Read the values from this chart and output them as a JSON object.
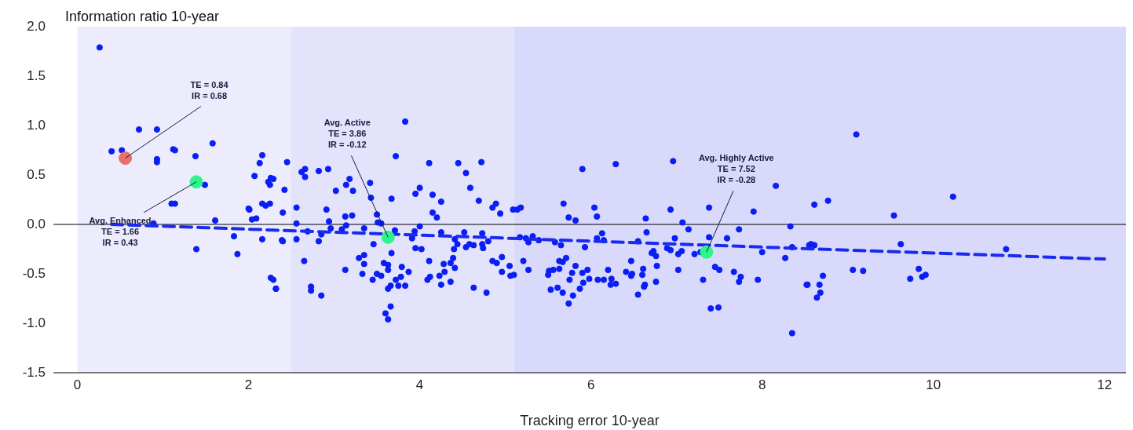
{
  "chart_data": {
    "type": "scatter",
    "xlabel": "Tracking error 10-year",
    "ylabel": "Information ratio 10-year",
    "xlim": [
      -0.28,
      12.25
    ],
    "xticks": [
      0,
      2,
      4,
      6,
      8,
      10,
      12
    ],
    "ylim": [
      -1.5,
      2.0
    ],
    "yticks": [
      {
        "value": -1.5,
        "label": "-1.5"
      },
      {
        "value": -1,
        "label": "-1.0"
      },
      {
        "value": -0.5,
        "label": "-0.5"
      },
      {
        "value": 0,
        "label": "0.0"
      },
      {
        "value": 0.5,
        "label": "0.5"
      },
      {
        "value": 1,
        "label": "1.0"
      },
      {
        "value": 1.5,
        "label": "1.5"
      },
      {
        "value": 2,
        "label": "2.0"
      }
    ],
    "grid": false,
    "legend": false,
    "bands": [
      {
        "axis": "x",
        "from": 0,
        "to": 2.5,
        "color": "#ececfc"
      },
      {
        "axis": "x",
        "from": 2.5,
        "to": 5.1,
        "color": "#e3e3fc"
      },
      {
        "axis": "x",
        "from": 5.1,
        "to": 12.25,
        "color": "#d9d9fb"
      }
    ],
    "ref_lines": [
      {
        "axis": "y",
        "value": 0,
        "color": "#000000"
      }
    ],
    "series": [
      {
        "type": "scatter",
        "color": "#0a1ef5",
        "x": [
          0.26,
          0.4,
          0.52,
          0.72,
          0.93,
          0.93,
          0.93,
          1.12,
          1.1,
          1.14,
          1.58,
          1.14,
          1.38,
          1.49,
          1.61,
          0.89,
          1.39,
          1.83,
          1.87,
          2.07,
          2.01,
          2.04,
          2.0,
          2.13,
          2.16,
          2.23,
          2.26,
          2.2,
          2.26,
          2.32,
          2.16,
          2.39,
          2.42,
          2.29,
          2.25,
          2.25,
          2.45,
          2.62,
          2.66,
          2.66,
          2.82,
          2.93,
          3.02,
          3.18,
          3.14,
          3.22,
          3.42,
          3.43,
          3.67,
          3.72,
          3.83,
          4.11,
          3.95,
          4.0,
          4.15,
          2.56,
          2.91,
          2.4,
          2.09,
          3.13,
          3.21,
          3.5,
          2.94,
          3.14,
          2.56,
          3.51,
          3.55,
          4.15,
          4.0,
          2.96,
          3.09,
          3.35,
          2.69,
          2.85,
          2.16,
          2.4,
          2.56,
          2.82,
          3.46,
          3.71,
          3.94,
          3.91,
          3.67,
          3.95,
          4.02,
          4.11,
          2.65,
          3.35,
          3.29,
          3.35,
          3.58,
          3.63,
          3.79,
          3.13,
          3.33,
          3.5,
          3.55,
          3.63,
          3.78,
          3.87,
          3.45,
          3.72,
          3.75,
          3.83,
          3.66,
          3.63,
          4.09,
          4.12,
          2.29,
          2.32,
          2.73,
          2.73,
          2.85,
          3.66,
          3.6,
          3.63,
          4.45,
          4.72,
          4.54,
          4.59,
          4.69,
          4.25,
          4.2,
          4.85,
          4.89,
          4.94,
          5.09,
          5.14,
          5.18,
          5.68,
          5.9,
          5.74,
          5.82,
          6.04,
          6.07,
          6.29,
          4.25,
          4.41,
          4.44,
          4.4,
          4.52,
          4.54,
          4.58,
          4.63,
          4.73,
          4.73,
          4.74,
          4.8,
          5.17,
          5.24,
          5.27,
          5.32,
          5.39,
          5.58,
          5.65,
          5.93,
          6.07,
          6.13,
          6.15,
          4.28,
          4.36,
          4.39,
          4.41,
          4.29,
          4.23,
          4.25,
          4.36,
          4.63,
          4.78,
          4.85,
          4.9,
          4.96,
          4.96,
          5.05,
          5.06,
          5.1,
          5.21,
          5.27,
          5.5,
          5.51,
          5.56,
          5.63,
          5.63,
          5.67,
          5.71,
          5.53,
          5.61,
          5.67,
          5.74,
          5.79,
          5.75,
          5.78,
          5.82,
          5.9,
          5.91,
          5.87,
          5.96,
          5.98,
          6.08,
          6.15,
          6.2,
          6.24,
          6.23,
          6.29,
          6.96,
          6.93,
          6.64,
          7.07,
          7.14,
          6.65,
          7.38,
          8.16,
          7.9,
          7.73,
          7.59,
          7.38,
          8.33,
          6.55,
          6.98,
          6.89,
          6.93,
          6.71,
          6.73,
          6.76,
          7.02,
          7.06,
          7.21,
          7.28,
          8.0,
          8.35,
          8.27,
          6.47,
          6.77,
          6.41,
          6.48,
          6.47,
          6.6,
          6.61,
          7.02,
          6.76,
          6.63,
          6.62,
          6.55,
          7.31,
          7.45,
          7.5,
          7.67,
          7.75,
          7.73,
          7.95,
          7.4,
          7.49,
          8.35,
          8.52,
          8.55,
          9.1,
          8.61,
          8.77,
          9.54,
          10.23,
          8.57,
          8.61,
          9.62,
          10.85,
          9.06,
          9.18,
          8.53,
          8.67,
          8.71,
          8.68,
          8.64,
          9.83,
          9.73,
          9.87,
          9.91
        ],
        "values": [
          1.79,
          0.74,
          0.75,
          0.96,
          0.96,
          0.66,
          0.63,
          0.76,
          0.21,
          0.21,
          0.82,
          0.75,
          0.69,
          0.4,
          0.04,
          0.01,
          -0.25,
          -0.12,
          -0.3,
          0.49,
          0.15,
          0.05,
          0.16,
          0.62,
          0.7,
          0.43,
          0.47,
          0.19,
          -0.54,
          -0.65,
          0.21,
          -0.16,
          0.35,
          0.46,
          0.4,
          0.21,
          0.63,
          0.53,
          0.56,
          0.48,
          0.54,
          0.56,
          0.34,
          0.46,
          0.4,
          0.34,
          0.42,
          0.27,
          0.26,
          0.69,
          1.04,
          0.62,
          0.31,
          0.37,
          0.3,
          0.17,
          0.15,
          0.12,
          0.06,
          0.08,
          0.09,
          0.1,
          0.03,
          -0.01,
          0.01,
          0.02,
          0.01,
          0.12,
          -0.02,
          -0.04,
          -0.05,
          -0.04,
          -0.07,
          -0.1,
          -0.15,
          -0.17,
          -0.15,
          -0.17,
          -0.2,
          -0.06,
          -0.07,
          -0.14,
          -0.29,
          -0.24,
          -0.25,
          -0.37,
          -0.37,
          -0.31,
          -0.34,
          -0.4,
          -0.39,
          -0.41,
          -0.43,
          -0.46,
          -0.5,
          -0.5,
          -0.52,
          -0.46,
          -0.53,
          -0.48,
          -0.56,
          -0.56,
          -0.62,
          -0.62,
          -0.62,
          -0.65,
          -0.56,
          -0.53,
          -0.56,
          -0.65,
          -0.63,
          -0.67,
          -0.72,
          -0.83,
          -0.9,
          -0.96,
          0.62,
          0.63,
          0.52,
          0.37,
          0.24,
          0.23,
          0.07,
          0.17,
          0.21,
          0.11,
          0.15,
          0.15,
          0.17,
          0.21,
          0.56,
          0.07,
          0.04,
          0.17,
          0.08,
          0.61,
          -0.08,
          -0.15,
          -0.2,
          -0.25,
          -0.08,
          -0.23,
          -0.2,
          -0.21,
          -0.09,
          -0.2,
          -0.24,
          -0.17,
          -0.13,
          -0.14,
          -0.18,
          -0.12,
          -0.16,
          -0.18,
          -0.21,
          -0.23,
          -0.14,
          -0.09,
          -0.16,
          -0.4,
          -0.39,
          -0.34,
          -0.44,
          -0.48,
          -0.52,
          -0.61,
          -0.58,
          -0.64,
          -0.69,
          -0.37,
          -0.39,
          -0.33,
          -0.48,
          -0.42,
          -0.52,
          -0.51,
          -0.37,
          -0.46,
          -0.51,
          -0.47,
          -0.46,
          -0.45,
          -0.37,
          -0.38,
          -0.34,
          -0.66,
          -0.64,
          -0.69,
          -0.8,
          -0.72,
          -0.56,
          -0.49,
          -0.42,
          -0.49,
          -0.59,
          -0.65,
          -0.46,
          -0.55,
          -0.56,
          -0.56,
          -0.46,
          -0.55,
          -0.61,
          -0.6,
          0.64,
          0.15,
          0.06,
          0.02,
          -0.05,
          -0.08,
          0.17,
          0.39,
          0.13,
          -0.05,
          -0.14,
          -0.13,
          -0.02,
          -0.17,
          -0.14,
          -0.24,
          -0.26,
          -0.29,
          -0.27,
          -0.32,
          -0.3,
          -0.27,
          -0.3,
          -0.28,
          -0.28,
          -0.23,
          -0.34,
          -0.37,
          -0.42,
          -0.48,
          -0.5,
          -0.52,
          -0.51,
          -0.45,
          -0.46,
          -0.58,
          -0.61,
          -0.63,
          -0.71,
          -0.56,
          -0.43,
          -0.46,
          -0.48,
          -0.53,
          -0.58,
          -0.56,
          -0.85,
          -0.84,
          -1.1,
          -0.61,
          -0.21,
          0.91,
          0.2,
          0.24,
          0.09,
          0.28,
          -0.2,
          -0.21,
          -0.2,
          -0.25,
          -0.46,
          -0.47,
          -0.61,
          -0.61,
          -0.52,
          -0.69,
          -0.74,
          -0.45,
          -0.55,
          -0.53,
          -0.51
        ]
      },
      {
        "type": "line",
        "color": "#1a2af0",
        "line_style": "dashed",
        "x": [
          0.4,
          12
        ],
        "values": [
          0.0,
          -0.35
        ]
      },
      {
        "type": "scatter",
        "color": "#e8706a",
        "x": [
          0.56
        ],
        "values": [
          0.67
        ]
      },
      {
        "type": "scatter",
        "color": "#2ef58a",
        "x": [
          1.39,
          3.63,
          7.35
        ],
        "values": [
          0.43,
          -0.13,
          -0.28
        ]
      }
    ],
    "annotations": [
      {
        "text": "TE = 0.84\nIR = 0.68",
        "x": 0.56,
        "y": 0.67
      },
      {
        "text": "Avg. Enhanced\nTE = 1.66\nIR = 0.43",
        "x": 1.39,
        "y": 0.43
      },
      {
        "text": "Avg. Active\nTE = 3.86\nIR = -0.12",
        "x": 3.63,
        "y": -0.13
      },
      {
        "text": "Avg. Highly Active\nTE = 7.52\nIR = -0.28",
        "x": 7.35,
        "y": -0.28
      }
    ]
  }
}
